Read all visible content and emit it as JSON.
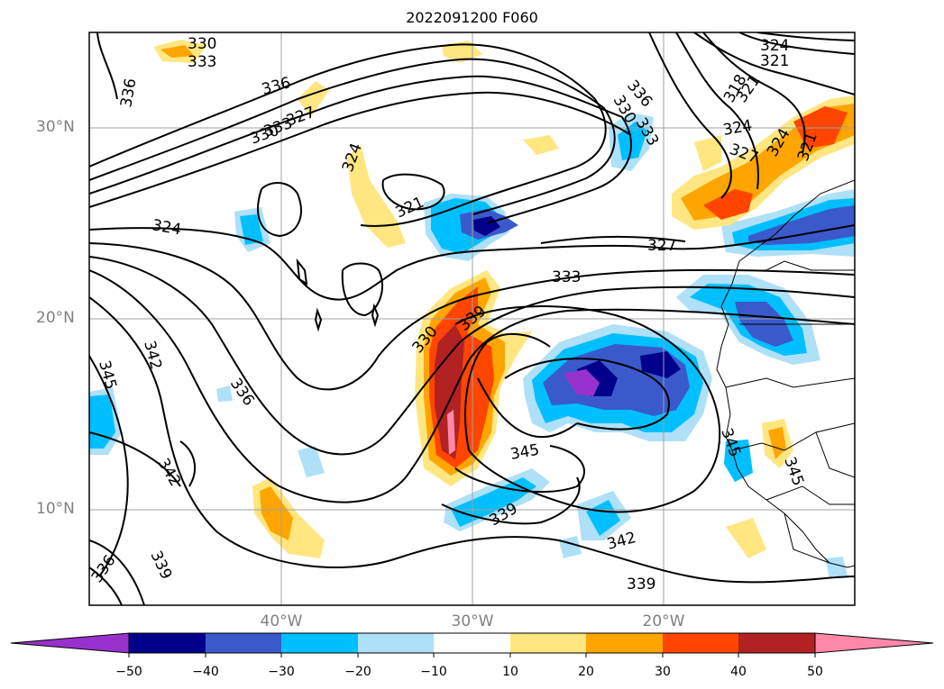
{
  "title": "2022091200 F060",
  "lat_labels": [
    "30°N",
    "20°N",
    "10°N"
  ],
  "lon_labels": [
    "40°W",
    "30°W",
    "20°W"
  ],
  "colorbar": {
    "ticks": [
      "−50",
      "−40",
      "−30",
      "−20",
      "−10",
      "10",
      "20",
      "30",
      "40",
      "50"
    ],
    "colors": [
      "#9932cc",
      "#00008b",
      "#3a5acc",
      "#00bfff",
      "#aee0f7",
      "#ffffff",
      "#ffe680",
      "#ffa500",
      "#ff4500",
      "#b22222",
      "#ff88aa"
    ]
  },
  "contour_labels": [
    "330",
    "333",
    "336",
    "336",
    "330",
    "333",
    "327",
    "336",
    "330",
    "333",
    "324",
    "321",
    "318",
    "321",
    "324",
    "327",
    "324",
    "321",
    "324",
    "324",
    "321",
    "327",
    "333",
    "339",
    "330",
    "342",
    "345",
    "336",
    "342",
    "345",
    "339",
    "342",
    "339",
    "336",
    "339",
    "345",
    "345"
  ]
}
